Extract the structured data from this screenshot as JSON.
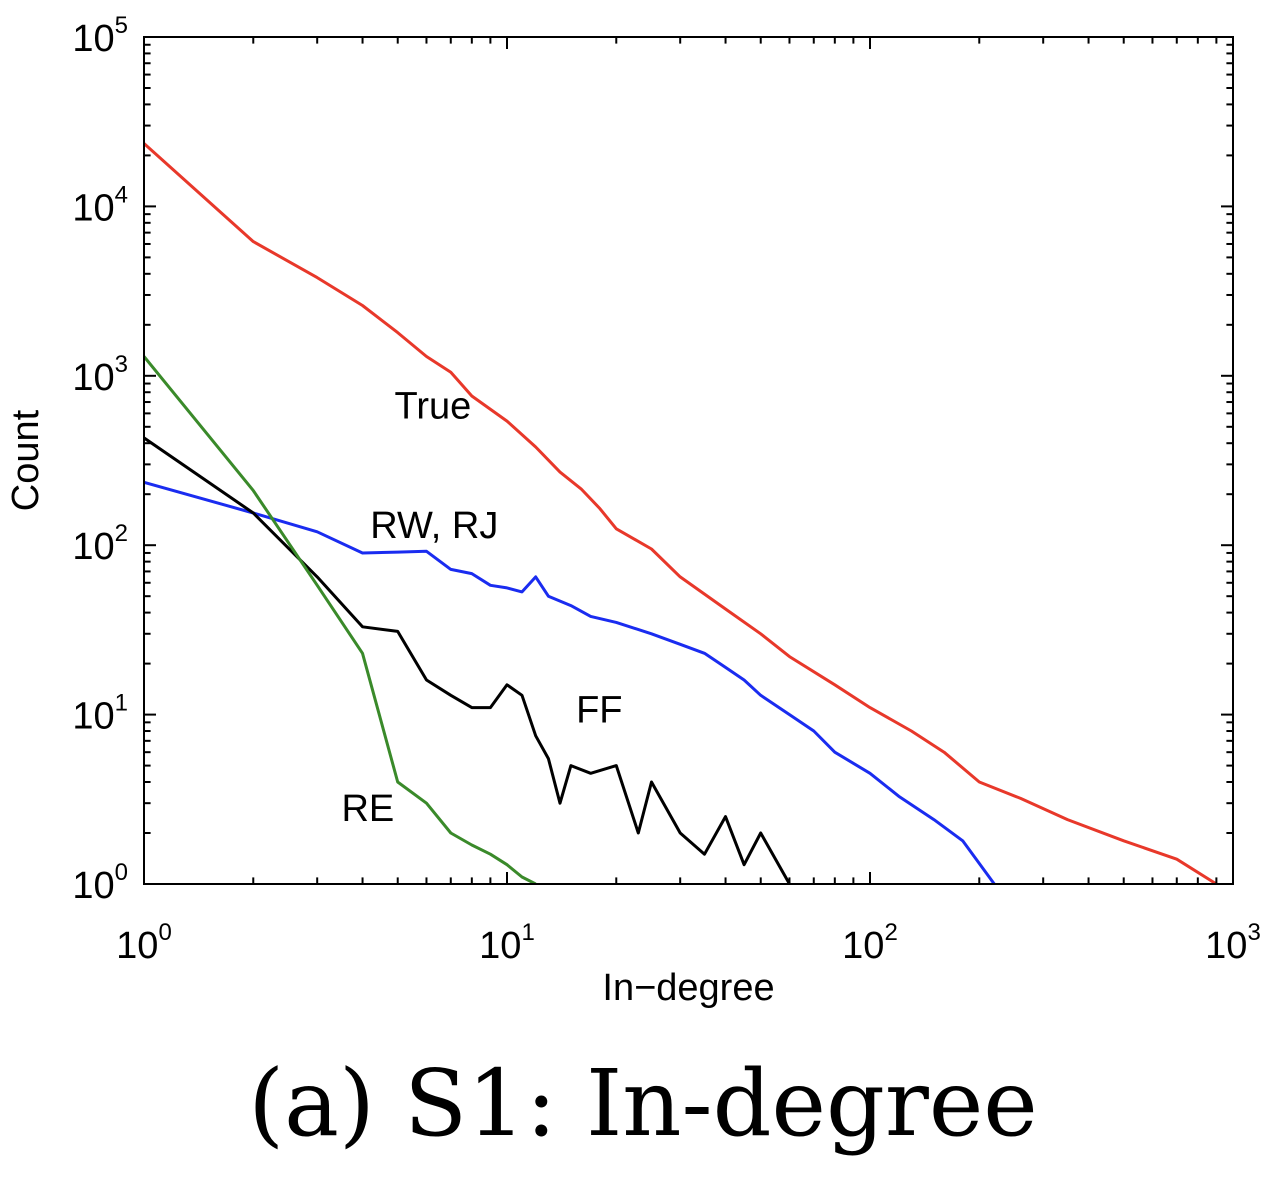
{
  "chart_data": {
    "type": "line",
    "xscale": "log",
    "yscale": "log",
    "xlabel": "In−degree",
    "ylabel": "Count",
    "xlim": [
      1,
      1000
    ],
    "ylim": [
      1,
      100000
    ],
    "x_ticks": [
      {
        "base": "10",
        "exp": "0",
        "value": 1
      },
      {
        "base": "10",
        "exp": "1",
        "value": 10
      },
      {
        "base": "10",
        "exp": "2",
        "value": 100
      },
      {
        "base": "10",
        "exp": "3",
        "value": 1000
      }
    ],
    "y_ticks": [
      {
        "base": "10",
        "exp": "0",
        "value": 1
      },
      {
        "base": "10",
        "exp": "1",
        "value": 10
      },
      {
        "base": "10",
        "exp": "2",
        "value": 100
      },
      {
        "base": "10",
        "exp": "3",
        "value": 1000
      },
      {
        "base": "10",
        "exp": "4",
        "value": 10000
      },
      {
        "base": "10",
        "exp": "5",
        "value": 100000
      }
    ],
    "grid": false,
    "series": [
      {
        "name": "True",
        "color": "#e8382a",
        "x": [
          1,
          2,
          3,
          4,
          5,
          6,
          7,
          8,
          10,
          12,
          14,
          16,
          18,
          20,
          25,
          30,
          40,
          50,
          60,
          80,
          100,
          130,
          160,
          200,
          260,
          350,
          500,
          700,
          900
        ],
        "y": [
          23500,
          6200,
          3800,
          2600,
          1800,
          1300,
          1050,
          760,
          540,
          380,
          270,
          215,
          165,
          125,
          95,
          65,
          42,
          30,
          22,
          15,
          11,
          8,
          6,
          4,
          3.2,
          2.4,
          1.8,
          1.4,
          1
        ]
      },
      {
        "name": "RW, RJ",
        "color": "#1a2cf0",
        "x": [
          1,
          2,
          3,
          4,
          5,
          6,
          7,
          8,
          9,
          10,
          11,
          12,
          13,
          15,
          17,
          20,
          25,
          30,
          35,
          40,
          45,
          50,
          60,
          70,
          80,
          100,
          120,
          150,
          180,
          220
        ],
        "y": [
          235,
          155,
          120,
          90,
          91,
          92,
          72,
          68,
          58,
          56,
          53,
          65,
          50,
          44,
          38,
          35,
          30,
          26,
          23,
          19,
          16,
          13,
          10,
          8,
          6,
          4.5,
          3.3,
          2.4,
          1.8,
          1
        ]
      },
      {
        "name": "FF",
        "color": "#000000",
        "x": [
          1,
          2,
          3,
          4,
          5,
          6,
          7,
          8,
          9,
          10,
          11,
          12,
          13,
          14,
          15,
          17,
          20,
          23,
          25,
          30,
          35,
          40,
          45,
          50,
          60
        ],
        "y": [
          430,
          155,
          65,
          33,
          31,
          16,
          13,
          11,
          11,
          15,
          13,
          7.5,
          5.5,
          3,
          5,
          4.5,
          5,
          2,
          4,
          2,
          1.5,
          2.5,
          1.3,
          2,
          1
        ]
      },
      {
        "name": "RE",
        "color": "#3a8a2a",
        "x": [
          1,
          2,
          3,
          4,
          5,
          6,
          7,
          8,
          9,
          10,
          11,
          12
        ],
        "y": [
          1300,
          210,
          58,
          23,
          4,
          3,
          2,
          1.7,
          1.5,
          1.3,
          1.1,
          1
        ]
      }
    ]
  },
  "labels": {
    "series_true": "True",
    "series_rw": "RW, RJ",
    "series_ff": "FF",
    "series_re": "RE"
  },
  "caption": "(a) S1:  In-degree"
}
